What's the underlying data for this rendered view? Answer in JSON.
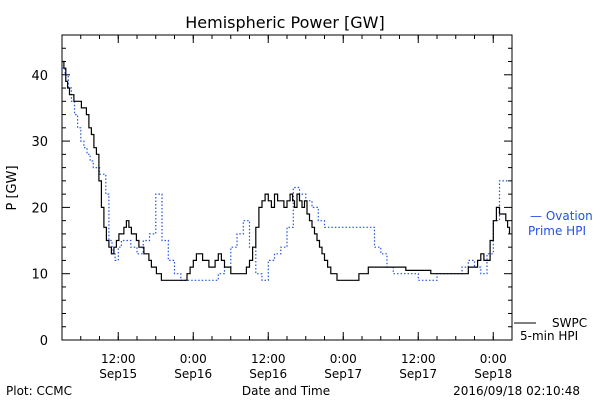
{
  "chart_data": {
    "type": "line",
    "title": "Hemispheric Power [GW]",
    "xlabel": "Date and Time",
    "ylabel": "P [GW]",
    "ylim": [
      0,
      46
    ],
    "yticks": [
      0,
      10,
      20,
      30,
      40
    ],
    "xlim_hours": [
      0,
      72
    ],
    "xticks": [
      {
        "hours": 9,
        "time": "12:00",
        "date": "Sep15"
      },
      {
        "hours": 21,
        "time": "0:00",
        "date": "Sep16"
      },
      {
        "hours": 33,
        "time": "12:00",
        "date": "Sep16"
      },
      {
        "hours": 45,
        "time": "0:00",
        "date": "Sep17"
      },
      {
        "hours": 57,
        "time": "12:00",
        "date": "Sep17"
      },
      {
        "hours": 69,
        "time": "0:00",
        "date": "Sep18"
      }
    ],
    "footer_left": "Plot: CCMC",
    "footer_right": "2016/09/18 02:10:48",
    "series": [
      {
        "name_line1": "SWPC",
        "name_line2": "5-min HPI",
        "color": "#000000",
        "style": "solid",
        "x": [
          0.0,
          0.3,
          0.6,
          0.9,
          1.2,
          1.5,
          1.9,
          2.3,
          2.7,
          3.1,
          3.5,
          3.9,
          4.3,
          4.7,
          5.1,
          5.5,
          5.9,
          6.3,
          6.7,
          7.1,
          7.5,
          7.9,
          8.3,
          8.7,
          9.1,
          9.5,
          9.9,
          10.3,
          10.7,
          11.1,
          11.5,
          11.9,
          12.3,
          12.7,
          13.1,
          13.5,
          13.9,
          14.3,
          14.7,
          15.1,
          15.5,
          15.9,
          16.3,
          16.7,
          17.1,
          17.5,
          18.0,
          18.5,
          19.0,
          19.5,
          20.0,
          20.5,
          21.0,
          21.5,
          22.0,
          22.5,
          23.0,
          23.5,
          24.0,
          24.5,
          25.0,
          25.5,
          26.0,
          26.5,
          27.0,
          27.5,
          28.0,
          28.5,
          29.0,
          29.5,
          30.0,
          30.5,
          31.0,
          31.5,
          32.0,
          32.5,
          33.0,
          33.5,
          34.0,
          34.5,
          35.0,
          35.5,
          36.0,
          36.5,
          36.9,
          37.2,
          37.6,
          38.0,
          38.4,
          38.8,
          39.2,
          39.6,
          40.0,
          40.4,
          40.8,
          41.2,
          41.6,
          42.0,
          42.5,
          43.0,
          43.5,
          44.0,
          44.5,
          45.0,
          45.5,
          46.0,
          46.5,
          47.0,
          47.5,
          48.0,
          48.5,
          49.0,
          49.5,
          50.0,
          51.0,
          52.0,
          53.0,
          54.0,
          55.0,
          56.0,
          57.0,
          58.0,
          59.0,
          60.0,
          61.0,
          62.0,
          63.0,
          64.0,
          65.0,
          66.0,
          66.5,
          67.0,
          67.5,
          68.0,
          68.5,
          69.0,
          69.5,
          70.0,
          70.5,
          71.0,
          71.3,
          71.6
        ],
        "y": [
          42,
          41,
          39,
          38,
          37,
          37,
          36,
          36,
          36,
          35,
          35,
          34,
          32,
          31,
          29,
          28,
          24,
          20,
          17,
          15,
          14,
          13,
          14,
          15,
          16,
          16,
          17,
          18,
          17,
          16,
          16,
          15,
          14,
          14,
          13,
          13,
          12,
          11,
          11,
          10,
          10,
          9,
          9,
          9,
          9,
          9,
          9,
          9,
          9,
          9,
          10,
          11,
          12,
          13,
          13,
          12,
          12,
          11,
          11,
          12,
          13,
          12,
          11,
          11,
          10,
          10,
          10,
          10,
          10,
          11,
          12,
          14,
          17,
          20,
          21,
          22,
          21,
          20,
          22,
          21,
          21,
          20,
          21,
          22,
          21,
          20,
          22,
          21,
          20,
          21,
          19,
          18,
          17,
          16,
          15,
          14,
          13,
          12,
          11,
          10,
          10,
          9,
          9,
          9,
          9,
          9,
          9,
          9,
          10,
          10,
          10,
          11,
          11,
          11,
          11,
          11,
          11,
          11,
          10.5,
          10.5,
          10.5,
          10.5,
          10,
          10,
          10,
          10,
          10,
          10,
          11,
          11,
          12,
          13,
          12,
          12,
          15,
          18,
          20,
          19,
          19,
          18,
          17,
          16
        ]
      },
      {
        "name_line1": "— Ovation",
        "name_line2": "Prime HPI",
        "color": "#2255dd",
        "style": "dotted",
        "x": [
          0.0,
          0.5,
          1.0,
          1.5,
          2.0,
          2.5,
          3.0,
          3.5,
          4.0,
          4.5,
          5.0,
          5.5,
          6.0,
          6.5,
          7.0,
          7.5,
          8.0,
          8.5,
          9.0,
          9.5,
          10.0,
          11.0,
          12.0,
          13.0,
          14.0,
          15.0,
          16.0,
          17.0,
          18.0,
          19.0,
          20.0,
          21.0,
          22.0,
          23.0,
          24.0,
          25.0,
          26.0,
          27.0,
          28.0,
          29.0,
          30.0,
          31.0,
          32.0,
          33.0,
          34.0,
          35.0,
          36.0,
          37.0,
          38.0,
          39.0,
          40.0,
          41.0,
          42.0,
          43.0,
          44.0,
          45.0,
          46.0,
          47.0,
          48.0,
          49.0,
          50.0,
          51.0,
          52.0,
          53.0,
          54.0,
          55.0,
          56.0,
          57.0,
          58.0,
          59.0,
          60.0,
          61.0,
          62.0,
          63.0,
          64.0,
          65.0,
          66.0,
          67.0,
          68.0,
          69.0,
          70.0,
          71.0,
          71.6
        ],
        "y": [
          41,
          40,
          38,
          36,
          34,
          32,
          30,
          29,
          28,
          27,
          26,
          26,
          25,
          25,
          22,
          15,
          13,
          12,
          14,
          15,
          15,
          14,
          13,
          15,
          16,
          22,
          15,
          12,
          10,
          9,
          9,
          9,
          9,
          9,
          9,
          10,
          11,
          14,
          16,
          18,
          14,
          10,
          9,
          12,
          13,
          14,
          17,
          23,
          22,
          21,
          20,
          18,
          17,
          17,
          17,
          17,
          17,
          17,
          17,
          17,
          14,
          13,
          11,
          10,
          10,
          10,
          10,
          9,
          9,
          9,
          10,
          10,
          10,
          10,
          11,
          12,
          11,
          10,
          13,
          18,
          24,
          24,
          24
        ]
      }
    ]
  }
}
